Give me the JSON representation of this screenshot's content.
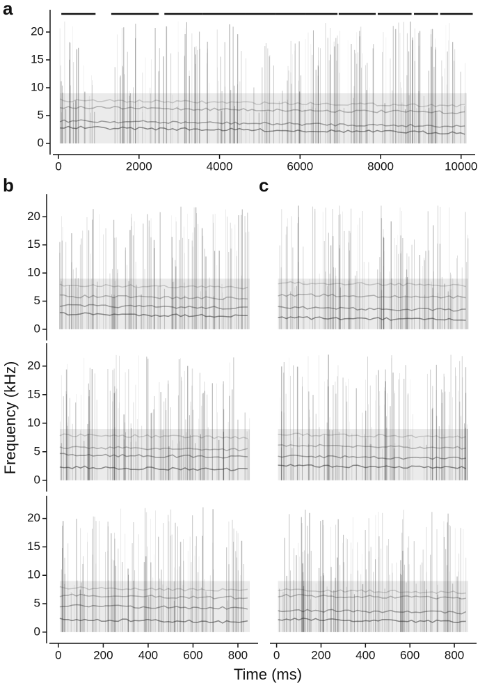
{
  "shared": {
    "ylabel": "Frequency (kHz)",
    "xlabel": "Time (ms)"
  },
  "chart_data": [
    {
      "type": "spectrogram",
      "label": "a",
      "xlim": [
        -140,
        10350
      ],
      "xticks": [
        0,
        2000,
        4000,
        6000,
        8000,
        10000
      ],
      "ylim": [
        -1,
        24
      ],
      "yticks": [
        0,
        5,
        10,
        15,
        20
      ],
      "segments": [
        [
          70,
          920
        ],
        [
          1310,
          2490
        ],
        [
          2630,
          3590
        ],
        [
          3590,
          4630
        ],
        [
          4630,
          5400
        ],
        [
          5400,
          6150
        ],
        [
          6150,
          6930
        ],
        [
          6960,
          7880
        ],
        [
          7930,
          8770
        ],
        [
          8830,
          9430
        ],
        [
          9480,
          10290
        ]
      ]
    },
    {
      "type": "spectrogram",
      "label": "b",
      "xlim": [
        -40,
        890
      ],
      "ylim": [
        -1,
        24
      ],
      "yticks": [
        0,
        5,
        10,
        15,
        20
      ]
    },
    {
      "type": "spectrogram",
      "xlim": [
        -40,
        890
      ],
      "ylim": [
        -1,
        24
      ],
      "yticks": [
        0,
        5,
        10,
        15,
        20
      ]
    },
    {
      "type": "spectrogram",
      "xlim": [
        -40,
        890
      ],
      "xticks": [
        0,
        200,
        400,
        600,
        800
      ],
      "ylim": [
        -1,
        24
      ],
      "yticks": [
        0,
        5,
        10,
        15,
        20
      ]
    },
    {
      "type": "spectrogram",
      "label": "c",
      "xlim": [
        -30,
        900
      ],
      "ylim": [
        -1,
        24
      ]
    },
    {
      "type": "spectrogram",
      "xlim": [
        -30,
        900
      ],
      "ylim": [
        -1,
        24
      ]
    },
    {
      "type": "spectrogram",
      "xlim": [
        -30,
        900
      ],
      "xticks": [
        0,
        200,
        400,
        600,
        800
      ],
      "ylim": [
        -1,
        24
      ]
    }
  ]
}
